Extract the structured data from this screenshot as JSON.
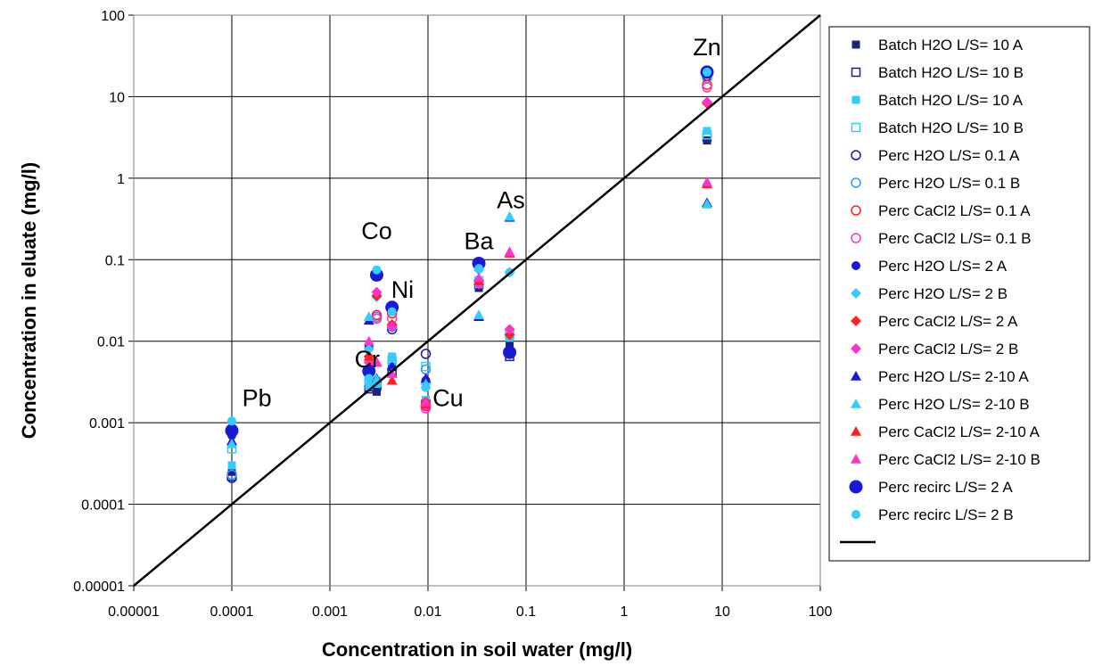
{
  "chart_data": {
    "type": "scatter",
    "title": "",
    "xlabel": "Concentration in soil water (mg/l)",
    "ylabel": "Concentration in eluate (mg/l)",
    "xscale": "log",
    "yscale": "log",
    "xlim": [
      1e-05,
      100
    ],
    "ylim": [
      1e-05,
      100
    ],
    "grid": true,
    "legend_position": "right",
    "x_ticks": [
      "0.00001",
      "0.0001",
      "0.001",
      "0.01",
      "0.1",
      "1",
      "10",
      "100"
    ],
    "y_ticks": [
      "0.00001",
      "0.0001",
      "0.001",
      "0.01",
      "0.1",
      "1",
      "10",
      "100"
    ],
    "annotations": [
      {
        "text": "Zn",
        "x": 7,
        "y": 32
      },
      {
        "text": "As",
        "x": 0.07,
        "y": 0.43
      },
      {
        "text": "Co",
        "x": 0.003,
        "y": 0.18
      },
      {
        "text": "Ba",
        "x": 0.033,
        "y": 0.135
      },
      {
        "text": "Ni",
        "x": 0.0055,
        "y": 0.034
      },
      {
        "text": "Cr",
        "x": 0.0024,
        "y": 0.0048
      },
      {
        "text": "Cu",
        "x": 0.016,
        "y": 0.0016
      },
      {
        "text": "Pb",
        "x": 0.00018,
        "y": 0.0016
      }
    ],
    "series": [
      {
        "name": "Batch H2O  L/S= 10  A",
        "marker": "square",
        "fill": "filled",
        "color": "#1a237e",
        "points": [
          [
            0.0001,
            0.00025
          ],
          [
            0.0025,
            0.0027
          ],
          [
            0.003,
            0.0024
          ],
          [
            0.0043,
            0.0048
          ],
          [
            0.0095,
            0.0018
          ],
          [
            0.033,
            0.045
          ],
          [
            0.068,
            0.0095
          ],
          [
            7,
            2.9
          ]
        ]
      },
      {
        "name": "Batch H2O  L/S= 10  B",
        "marker": "square",
        "fill": "open",
        "color": "#1a237e",
        "points": [
          [
            0.0001,
            0.00022
          ],
          [
            0.0025,
            0.0026
          ],
          [
            0.003,
            0.0028
          ],
          [
            0.0043,
            0.0042
          ],
          [
            0.0095,
            0.0017
          ],
          [
            0.033,
            0.05
          ],
          [
            0.068,
            0.0065
          ],
          [
            7,
            3.2
          ]
        ]
      },
      {
        "name": "Batch H2O  L/S= 10  A",
        "marker": "square",
        "fill": "filled",
        "color": "#33ccff",
        "points": [
          [
            0.0001,
            0.0003
          ],
          [
            0.0025,
            0.0028
          ],
          [
            0.003,
            0.003
          ],
          [
            0.0043,
            0.0065
          ],
          [
            0.0095,
            0.0019
          ],
          [
            0.033,
            0.05
          ],
          [
            0.068,
            0.011
          ],
          [
            7,
            3.8
          ]
        ]
      },
      {
        "name": "Batch H2O  L/S= 10  B",
        "marker": "square",
        "fill": "open",
        "color": "#33ccff",
        "points": [
          [
            0.0001,
            0.00048
          ],
          [
            0.0025,
            0.0033
          ],
          [
            0.003,
            0.0032
          ],
          [
            0.0043,
            0.0058
          ],
          [
            0.0095,
            0.0049
          ],
          [
            0.033,
            0.055
          ],
          [
            0.068,
            0.012
          ],
          [
            7,
            3.4
          ]
        ]
      },
      {
        "name": "Perc H2O L/S= 0.1  A",
        "marker": "circle",
        "fill": "open",
        "color": "#1a1aa6",
        "points": [
          [
            0.0001,
            0.00021
          ],
          [
            0.003,
            0.019
          ],
          [
            0.0043,
            0.014
          ],
          [
            0.0095,
            0.007
          ],
          [
            0.033,
            0.09
          ],
          [
            7,
            18
          ]
        ]
      },
      {
        "name": "Perc H2O L/S= 0.1  B",
        "marker": "circle",
        "fill": "open",
        "color": "#3399ff",
        "points": [
          [
            0.0001,
            0.00023
          ],
          [
            0.003,
            0.02
          ],
          [
            0.0043,
            0.015
          ],
          [
            0.0095,
            0.0045
          ],
          [
            0.033,
            0.085
          ],
          [
            7,
            17
          ]
        ]
      },
      {
        "name": "Perc CaCl2 L/S= 0.1  A",
        "marker": "circle",
        "fill": "open",
        "color": "#ff2020",
        "points": [
          [
            0.003,
            0.021
          ],
          [
            0.0043,
            0.022
          ],
          [
            0.0095,
            0.0016
          ],
          [
            7,
            14
          ]
        ]
      },
      {
        "name": "Perc CaCl2 L/S= 0.1  B",
        "marker": "circle",
        "fill": "open",
        "color": "#ff33cc",
        "points": [
          [
            0.003,
            0.019
          ],
          [
            0.0043,
            0.019
          ],
          [
            0.0095,
            0.0015
          ],
          [
            7,
            13
          ]
        ]
      },
      {
        "name": "Perc H2O L/S= 2  A",
        "marker": "circle",
        "fill": "filled",
        "color": "#1a1ad6",
        "points": [
          [
            0.0001,
            0.0007
          ],
          [
            0.0025,
            0.0085
          ],
          [
            0.003,
            0.065
          ],
          [
            0.0043,
            0.026
          ],
          [
            0.0095,
            0.0033
          ],
          [
            0.033,
            0.095
          ],
          [
            0.068,
            0.0075
          ],
          [
            7,
            19
          ]
        ]
      },
      {
        "name": "Perc H2O L/S= 2  B",
        "marker": "diamond",
        "fill": "filled",
        "color": "#33ccff",
        "points": [
          [
            0.0001,
            0.0009
          ],
          [
            0.0025,
            0.008
          ],
          [
            0.003,
            0.035
          ],
          [
            0.0043,
            0.024
          ],
          [
            0.0095,
            0.003
          ],
          [
            0.033,
            0.075
          ],
          [
            0.068,
            0.07
          ],
          [
            7,
            8.5
          ]
        ]
      },
      {
        "name": "Perc CaCl2 L/S= 2  A",
        "marker": "diamond",
        "fill": "filled",
        "color": "#ff2020",
        "points": [
          [
            0.0025,
            0.0065
          ],
          [
            0.003,
            0.036
          ],
          [
            0.0043,
            0.016
          ],
          [
            0.0095,
            0.0018
          ],
          [
            0.033,
            0.055
          ],
          [
            0.068,
            0.012
          ],
          [
            7,
            8.3
          ]
        ]
      },
      {
        "name": "Perc CaCl2 L/S= 2  B",
        "marker": "diamond",
        "fill": "filled",
        "color": "#ff33cc",
        "points": [
          [
            0.0025,
            0.0055
          ],
          [
            0.003,
            0.04
          ],
          [
            0.0043,
            0.015
          ],
          [
            0.0095,
            0.0016
          ],
          [
            0.033,
            0.05
          ],
          [
            0.068,
            0.014
          ],
          [
            7,
            8.6
          ]
        ]
      },
      {
        "name": "Perc H2O L/S= 2-10  A",
        "marker": "triangle",
        "fill": "filled",
        "color": "#1a1ad6",
        "points": [
          [
            0.0001,
            0.0006
          ],
          [
            0.0025,
            0.018
          ],
          [
            0.003,
            0.0035
          ],
          [
            0.0043,
            0.005
          ],
          [
            0.0095,
            0.0035
          ],
          [
            0.033,
            0.02
          ],
          [
            0.068,
            0.33
          ],
          [
            7,
            0.5
          ]
        ]
      },
      {
        "name": "Perc H2O L/S= 2-10  B",
        "marker": "triangle",
        "fill": "filled",
        "color": "#33ccff",
        "points": [
          [
            0.0001,
            0.00055
          ],
          [
            0.0025,
            0.02
          ],
          [
            0.003,
            0.0034
          ],
          [
            0.0043,
            0.0062
          ],
          [
            0.0095,
            0.003
          ],
          [
            0.033,
            0.021
          ],
          [
            0.068,
            0.34
          ],
          [
            7,
            0.48
          ]
        ]
      },
      {
        "name": "Perc CaCl2 L/S= 2-10  A",
        "marker": "triangle",
        "fill": "filled",
        "color": "#ff2020",
        "points": [
          [
            0.0025,
            0.0065
          ],
          [
            0.003,
            0.0055
          ],
          [
            0.0043,
            0.0033
          ],
          [
            0.0095,
            0.0017
          ],
          [
            0.033,
            0.055
          ],
          [
            0.068,
            0.12
          ],
          [
            7,
            0.85
          ]
        ]
      },
      {
        "name": "Perc CaCl2 L/S= 2-10  B",
        "marker": "triangle",
        "fill": "filled",
        "color": "#ff33cc",
        "points": [
          [
            0.0025,
            0.01
          ],
          [
            0.003,
            0.0056
          ],
          [
            0.0043,
            0.004
          ],
          [
            0.0095,
            0.0018
          ],
          [
            0.033,
            0.06
          ],
          [
            0.068,
            0.125
          ],
          [
            7,
            0.9
          ]
        ]
      },
      {
        "name": "Perc recirc L/S= 2  A",
        "marker": "circle-large",
        "fill": "filled",
        "color": "#1a1ad6",
        "points": [
          [
            0.0001,
            0.0008
          ],
          [
            0.0025,
            0.0043
          ],
          [
            0.003,
            0.065
          ],
          [
            0.0043,
            0.026
          ],
          [
            0.033,
            0.09
          ],
          [
            0.068,
            0.0073
          ],
          [
            7,
            20
          ]
        ]
      },
      {
        "name": "Perc recirc L/S= 2  B",
        "marker": "circle",
        "fill": "filled",
        "color": "#33ccff",
        "points": [
          [
            0.0001,
            0.00105
          ],
          [
            0.0025,
            0.0035
          ],
          [
            0.003,
            0.075
          ],
          [
            0.0043,
            0.023
          ],
          [
            0.0095,
            0.0027
          ],
          [
            0.033,
            0.078
          ],
          [
            0.068,
            0.07
          ],
          [
            7,
            20
          ]
        ]
      },
      {
        "name": "",
        "marker": "line",
        "color": "#000000",
        "points": [
          [
            1e-05,
            1e-05
          ],
          [
            100,
            100
          ]
        ]
      }
    ]
  }
}
